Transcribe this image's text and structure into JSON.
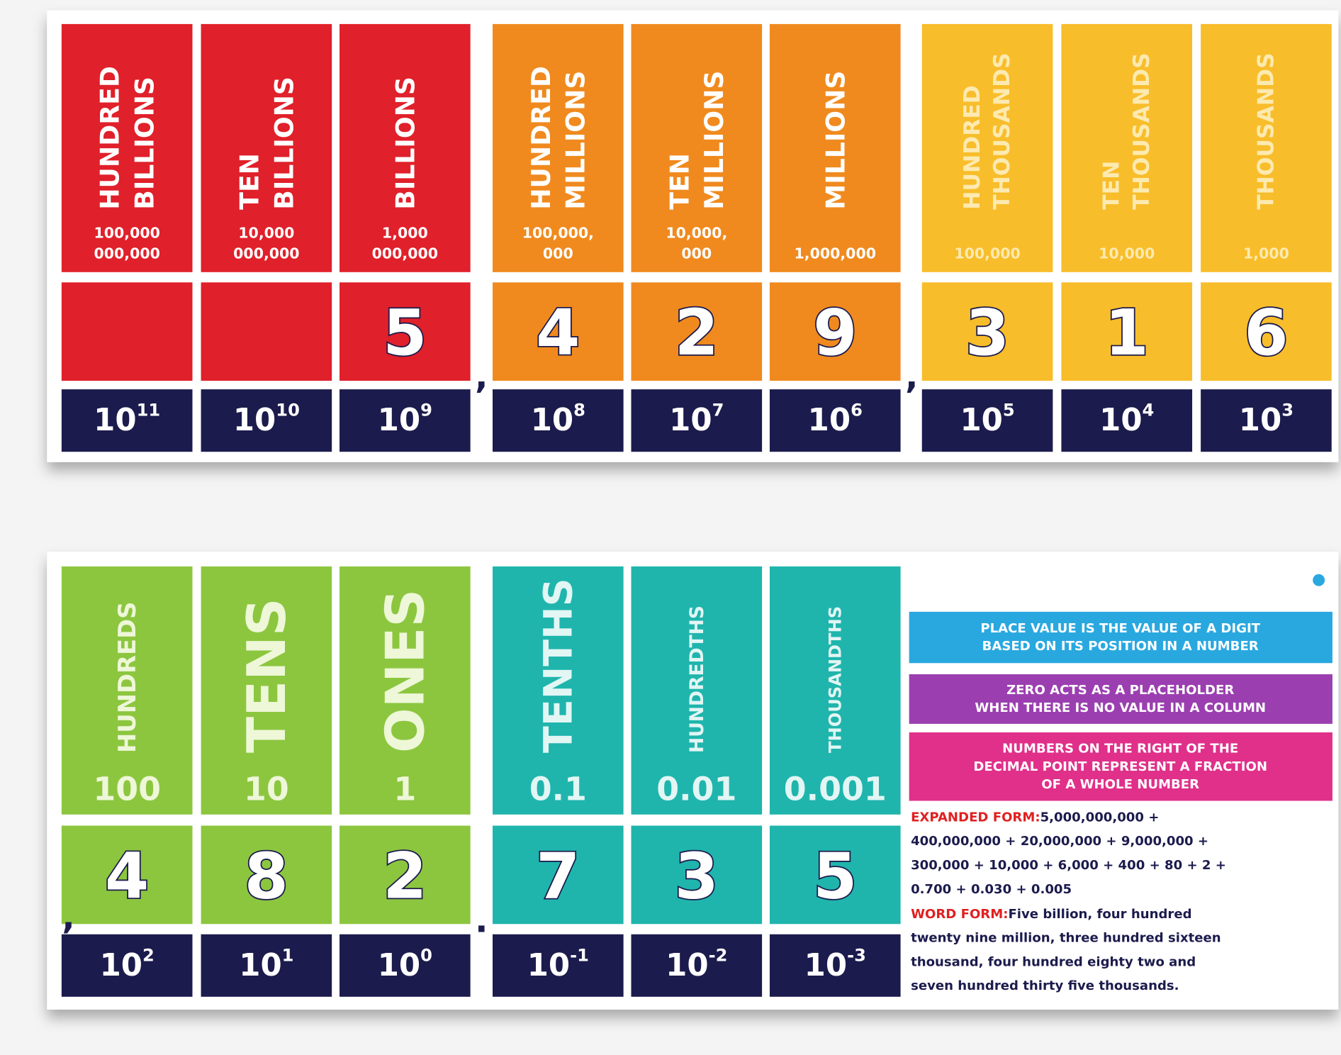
{
  "rows": [
    {
      "columns": [
        {
          "name": [
            "HUNDRED",
            "BILLIONS"
          ],
          "value": [
            "100,000",
            "000,000"
          ],
          "digit": null,
          "power": [
            "10",
            "11"
          ]
        },
        {
          "name": [
            "TEN",
            "BILLIONS"
          ],
          "value": [
            "10,000",
            "000,000"
          ],
          "digit": null,
          "power": [
            "10",
            "10"
          ]
        },
        {
          "name": [
            "BILLIONS"
          ],
          "value": [
            "1,000",
            "000,000"
          ],
          "digit": "5",
          "power": [
            "10",
            "9"
          ]
        },
        {
          "name": [
            "HUNDRED",
            "MILLIONS"
          ],
          "value": [
            "100,000,",
            "000"
          ],
          "digit": "4",
          "power": [
            "10",
            "8"
          ]
        },
        {
          "name": [
            "TEN",
            "MILLIONS"
          ],
          "value": [
            "10,000,",
            "000"
          ],
          "digit": "2",
          "power": [
            "10",
            "7"
          ]
        },
        {
          "name": [
            "MILLIONS"
          ],
          "value": [
            "1,000,000"
          ],
          "digit": "9",
          "power": [
            "10",
            "6"
          ]
        },
        {
          "name": [
            "HUNDRED",
            "THOUSANDS"
          ],
          "value": [
            "100,000"
          ],
          "digit": "3",
          "power": [
            "10",
            "5"
          ]
        },
        {
          "name": [
            "TEN",
            "THOUSANDS"
          ],
          "value": [
            "10,000"
          ],
          "digit": "1",
          "power": [
            "10",
            "4"
          ]
        },
        {
          "name": [
            "THOUSANDS"
          ],
          "value": [
            "1,000"
          ],
          "digit": "6",
          "power": [
            "10",
            "3"
          ]
        }
      ],
      "separators": [
        ",",
        ","
      ]
    },
    {
      "columns": [
        {
          "name": [
            "HUNDREDS"
          ],
          "value": [
            "100"
          ],
          "digit": "4",
          "power": [
            "10",
            "2"
          ]
        },
        {
          "name": [
            "TENS"
          ],
          "value": [
            "10"
          ],
          "digit": "8",
          "power": [
            "10",
            "1"
          ]
        },
        {
          "name": [
            "ONES"
          ],
          "value": [
            "1"
          ],
          "digit": "2",
          "power": [
            "10",
            "0"
          ]
        },
        {
          "name": [
            "TENTHS"
          ],
          "value": [
            "0.1"
          ],
          "digit": "7",
          "power": [
            "10",
            "-1"
          ]
        },
        {
          "name": [
            "HUNDREDTHS"
          ],
          "value": [
            "0.01"
          ],
          "digit": "3",
          "power": [
            "10",
            "-2"
          ]
        },
        {
          "name": [
            "THOUSANDTHS"
          ],
          "value": [
            "0.001"
          ],
          "digit": "5",
          "power": [
            "10",
            "-3"
          ]
        }
      ],
      "separators": [
        ",",
        "."
      ]
    }
  ],
  "info": {
    "boxes": [
      [
        "PLACE VALUE IS THE VALUE OF A DIGIT",
        "BASED ON ITS POSITION IN A NUMBER"
      ],
      [
        "ZERO ACTS AS A PLACEHOLDER",
        "WHEN THERE IS NO VALUE IN A COLUMN"
      ],
      [
        "NUMBERS ON THE RIGHT OF THE",
        "DECIMAL POINT REPRESENT A FRACTION",
        "OF A WHOLE NUMBER"
      ]
    ],
    "expanded_label": "EXPANDED FORM:",
    "expanded_lines": [
      "5,000,000,000 +",
      "400,000,000 + 20,000,000 + 9,000,000 +",
      "300,000 + 10,000 + 6,000 + 400 + 80 + 2 +",
      "0.700 + 0.030 + 0.005"
    ],
    "word_label": "WORD FORM:",
    "word_lines": [
      "Five billion, four hundred",
      "twenty nine million, three hundred sixteen",
      "thousand, four hundred eighty two and",
      "seven hundred thirty five thousands."
    ]
  }
}
